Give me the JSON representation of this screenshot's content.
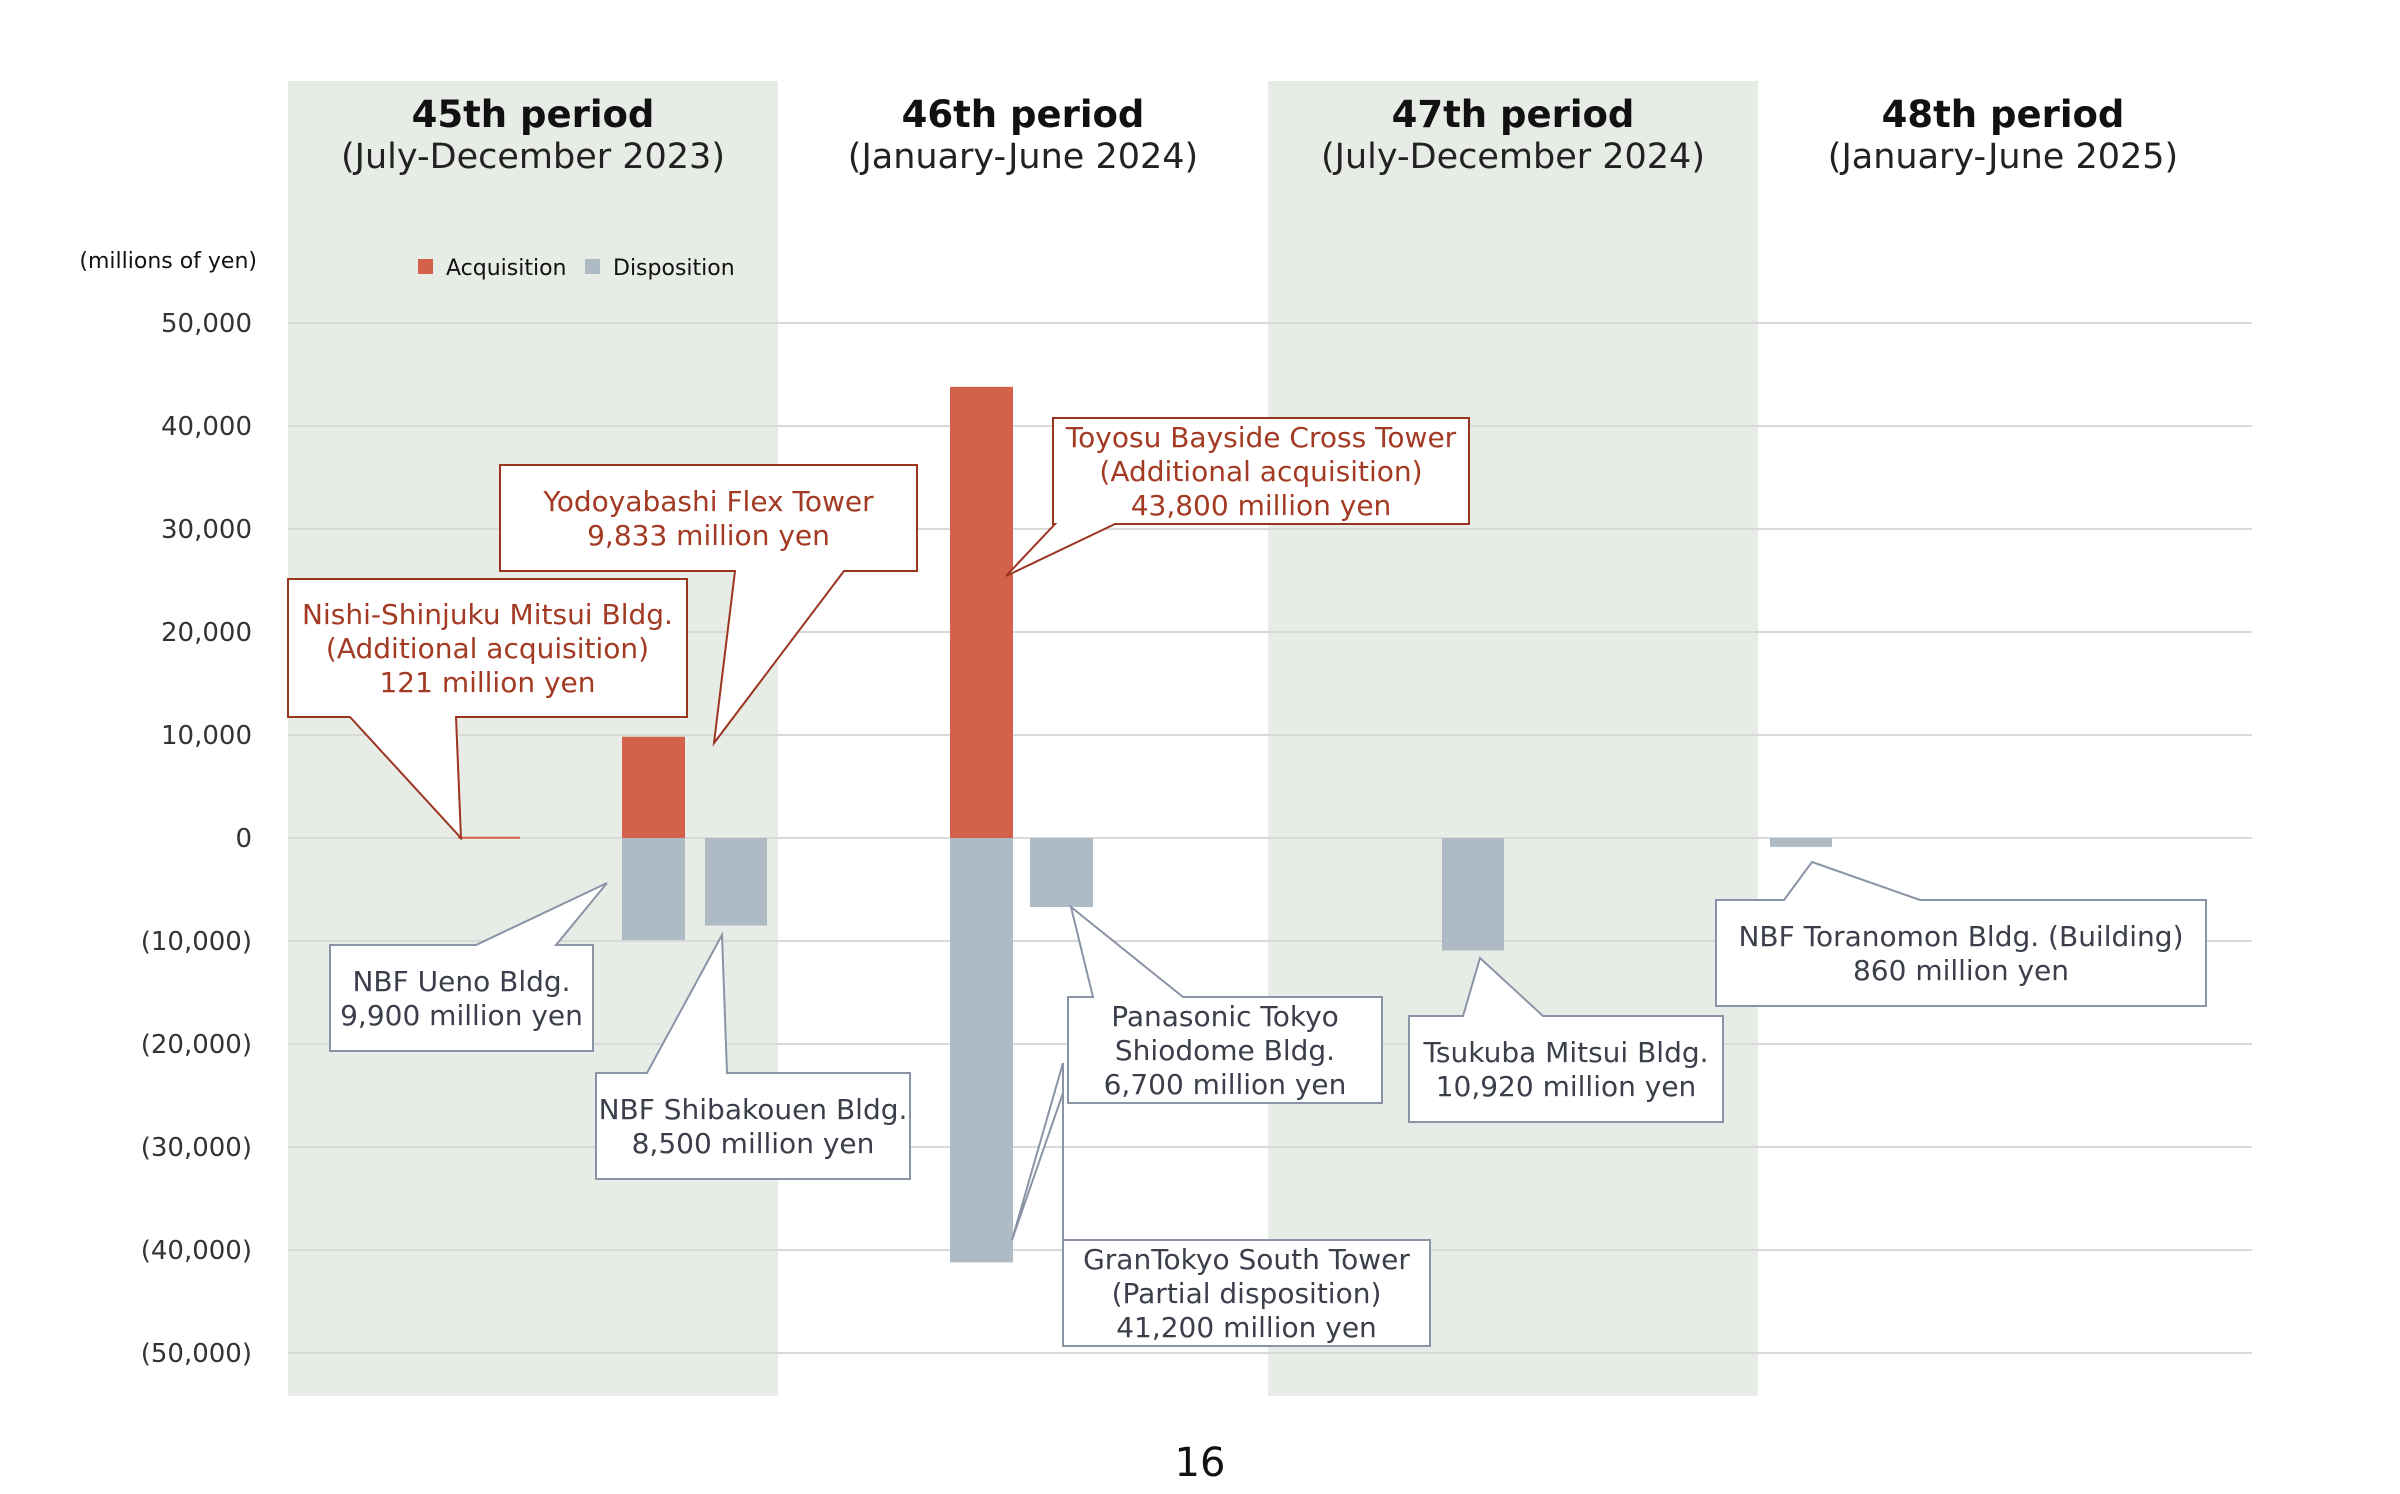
{
  "page_number": "16",
  "chart_data": {
    "type": "bar",
    "unit_label": "(millions of yen)",
    "ylim": [
      -50000,
      50000
    ],
    "y_ticks": [
      {
        "value": 50000,
        "label": "50,000"
      },
      {
        "value": 40000,
        "label": "40,000"
      },
      {
        "value": 30000,
        "label": "30,000"
      },
      {
        "value": 20000,
        "label": "20,000"
      },
      {
        "value": 10000,
        "label": "10,000"
      },
      {
        "value": 0,
        "label": "0"
      },
      {
        "value": -10000,
        "label": "(10,000)"
      },
      {
        "value": -20000,
        "label": "(20,000)"
      },
      {
        "value": -30000,
        "label": "(30,000)"
      },
      {
        "value": -40000,
        "label": "(40,000)"
      },
      {
        "value": -50000,
        "label": "(50,000)"
      }
    ],
    "grid": true,
    "legend": {
      "position": "top-left",
      "items": [
        {
          "label": "Acquisition",
          "color": "#D4624A"
        },
        {
          "label": "Disposition",
          "color": "#AEBBC4"
        }
      ]
    },
    "colors": {
      "acquisition": "#D4624A",
      "disposition": "#AEBBC4",
      "shade": "#E8ECE6",
      "acq_text": "#A33A23",
      "acq_border": "#9B3520",
      "disp_text": "#3A3F4A",
      "disp_border": "#8A94A6",
      "grid": "#D9D9D9"
    },
    "periods": [
      {
        "title": "45th period",
        "subtitle": "(July-December 2023)",
        "shaded": true
      },
      {
        "title": "46th period",
        "subtitle": "(January-June 2024)",
        "shaded": false
      },
      {
        "title": "47th period",
        "subtitle": "(July-December 2024)",
        "shaded": true
      },
      {
        "title": "48th period",
        "subtitle": "(January-June 2025)",
        "shaded": false
      }
    ],
    "bars": [
      {
        "period": 0,
        "type": "acquisition",
        "value": 121,
        "label": [
          "Nishi-Shinjuku Mitsui Bldg.",
          "(Additional acquisition)",
          "121 million yen"
        ]
      },
      {
        "period": 0,
        "type": "acquisition",
        "value": 9833,
        "label": [
          "Yodoyabashi Flex Tower",
          "9,833 million yen"
        ]
      },
      {
        "period": 0,
        "type": "disposition",
        "value": -9900,
        "label": [
          "NBF Ueno Bldg.",
          "9,900 million yen"
        ]
      },
      {
        "period": 0,
        "type": "disposition",
        "value": -8500,
        "label": [
          "NBF Shibakouen Bldg.",
          "8,500 million yen"
        ]
      },
      {
        "period": 1,
        "type": "acquisition",
        "value": 43800,
        "label": [
          "Toyosu Bayside Cross Tower",
          "(Additional acquisition)",
          "43,800 million yen"
        ]
      },
      {
        "period": 1,
        "type": "disposition",
        "value": -41200,
        "label": [
          "GranTokyo South Tower",
          "(Partial disposition)",
          "41,200 million yen"
        ]
      },
      {
        "period": 1,
        "type": "disposition",
        "value": -6700,
        "label": [
          "Panasonic Tokyo",
          "Shiodome Bldg.",
          "6,700 million yen"
        ]
      },
      {
        "period": 2,
        "type": "disposition",
        "value": -10920,
        "label": [
          "Tsukuba Mitsui Bldg.",
          "10,920 million yen"
        ]
      },
      {
        "period": 3,
        "type": "disposition",
        "value": -860,
        "label": [
          "NBF Toranomon Bldg. (Building)",
          "860 million yen"
        ]
      }
    ]
  }
}
